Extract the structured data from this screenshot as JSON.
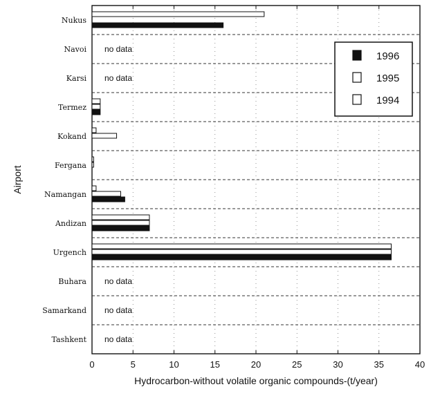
{
  "chart_data": {
    "type": "bar",
    "orientation": "horizontal",
    "ylabel": "Airport",
    "xlabel": "Hydrocarbon-without volatile organic compounds-(t/year)",
    "xlim": [
      0,
      40
    ],
    "xticks": [
      0,
      5,
      10,
      15,
      20,
      25,
      30,
      35,
      40
    ],
    "grid": true,
    "legend_position": "top-right",
    "no_data_text": "no data",
    "categories": [
      "Nukus",
      "Navoi",
      "Karsi",
      "Termez",
      "Kokand",
      "Fergana",
      "Namangan",
      "Andizan",
      "Urgench",
      "Buhara",
      "Samarkand",
      "Tashkent"
    ],
    "no_data": [
      false,
      true,
      true,
      false,
      false,
      false,
      false,
      false,
      false,
      true,
      true,
      true
    ],
    "series": [
      {
        "name": "1994",
        "color": "#ffffff",
        "values": [
          21,
          null,
          null,
          1,
          0.5,
          0.2,
          0.5,
          7,
          36.5,
          null,
          null,
          null
        ]
      },
      {
        "name": "1995",
        "color": "#ffffff",
        "values": [
          null,
          null,
          null,
          1,
          3,
          0.2,
          3.5,
          7,
          36.5,
          null,
          null,
          null
        ]
      },
      {
        "name": "1996",
        "color": "#111111",
        "values": [
          16,
          null,
          null,
          1,
          null,
          null,
          4,
          7,
          36.5,
          null,
          null,
          null
        ]
      }
    ],
    "legend_order": [
      "1996",
      "1995",
      "1994"
    ]
  }
}
